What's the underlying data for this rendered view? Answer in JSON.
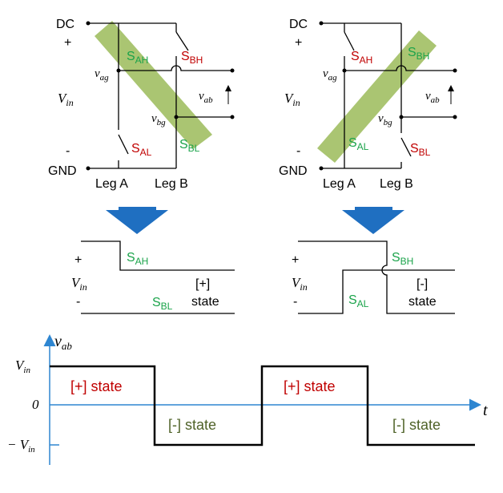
{
  "top_left": {
    "dc": "DC",
    "plus": "+",
    "minus": "-",
    "gnd": "GND",
    "vin": "V",
    "vin_sub": "in",
    "vag": "v",
    "vag_sub": "ag",
    "vbg": "v",
    "vbg_sub": "bg",
    "vab": "v",
    "vab_sub": "ab",
    "leg_a": "Leg A",
    "leg_b": "Leg B",
    "sah": "S",
    "sah_sub": "AH",
    "sbh": "S",
    "sbh_sub": "BH",
    "sal": "S",
    "sal_sub": "AL",
    "sbl": "S",
    "sbl_sub": "BL"
  },
  "top_right": {
    "dc": "DC",
    "plus": "+",
    "minus": "-",
    "gnd": "GND",
    "vin": "V",
    "vin_sub": "in",
    "vag": "v",
    "vag_sub": "ag",
    "vbg": "v",
    "vbg_sub": "bg",
    "vab": "v",
    "vab_sub": "ab",
    "leg_a": "Leg A",
    "leg_b": "Leg B",
    "sah": "S",
    "sah_sub": "AH",
    "sbh": "S",
    "sbh_sub": "BH",
    "sal": "S",
    "sal_sub": "AL",
    "sbl": "S",
    "sbl_sub": "BL"
  },
  "mid_left": {
    "plus": "+",
    "minus": "-",
    "vin": "V",
    "vin_sub": "in",
    "sah": "S",
    "sah_sub": "AH",
    "sbl": "S",
    "sbl_sub": "BL",
    "state_line1": "[+]",
    "state_line2": "state"
  },
  "mid_right": {
    "plus": "+",
    "minus": "-",
    "vin": "V",
    "vin_sub": "in",
    "sbh": "S",
    "sbh_sub": "BH",
    "sal": "S",
    "sal_sub": "AL",
    "state_line1": "[-]",
    "state_line2": "state"
  },
  "waveform": {
    "y_axis_label": "v",
    "y_axis_sub": "ab",
    "x_axis_label": "t",
    "vin_label": "V",
    "vin_sub": "in",
    "zero_label": "0",
    "neg_prefix": "− V",
    "neg_sub": "in",
    "states": [
      "[+] state",
      "[-] state",
      "[+] state",
      "[-] state"
    ]
  },
  "colors": {
    "highlight": "#9bbb59",
    "arrow": "#1f6fc1",
    "axis": "#2e86d1",
    "switch_on": "#1aa34a",
    "switch_off": "#c00000",
    "state_plus": "#c00000",
    "state_minus": "#4f6228"
  }
}
